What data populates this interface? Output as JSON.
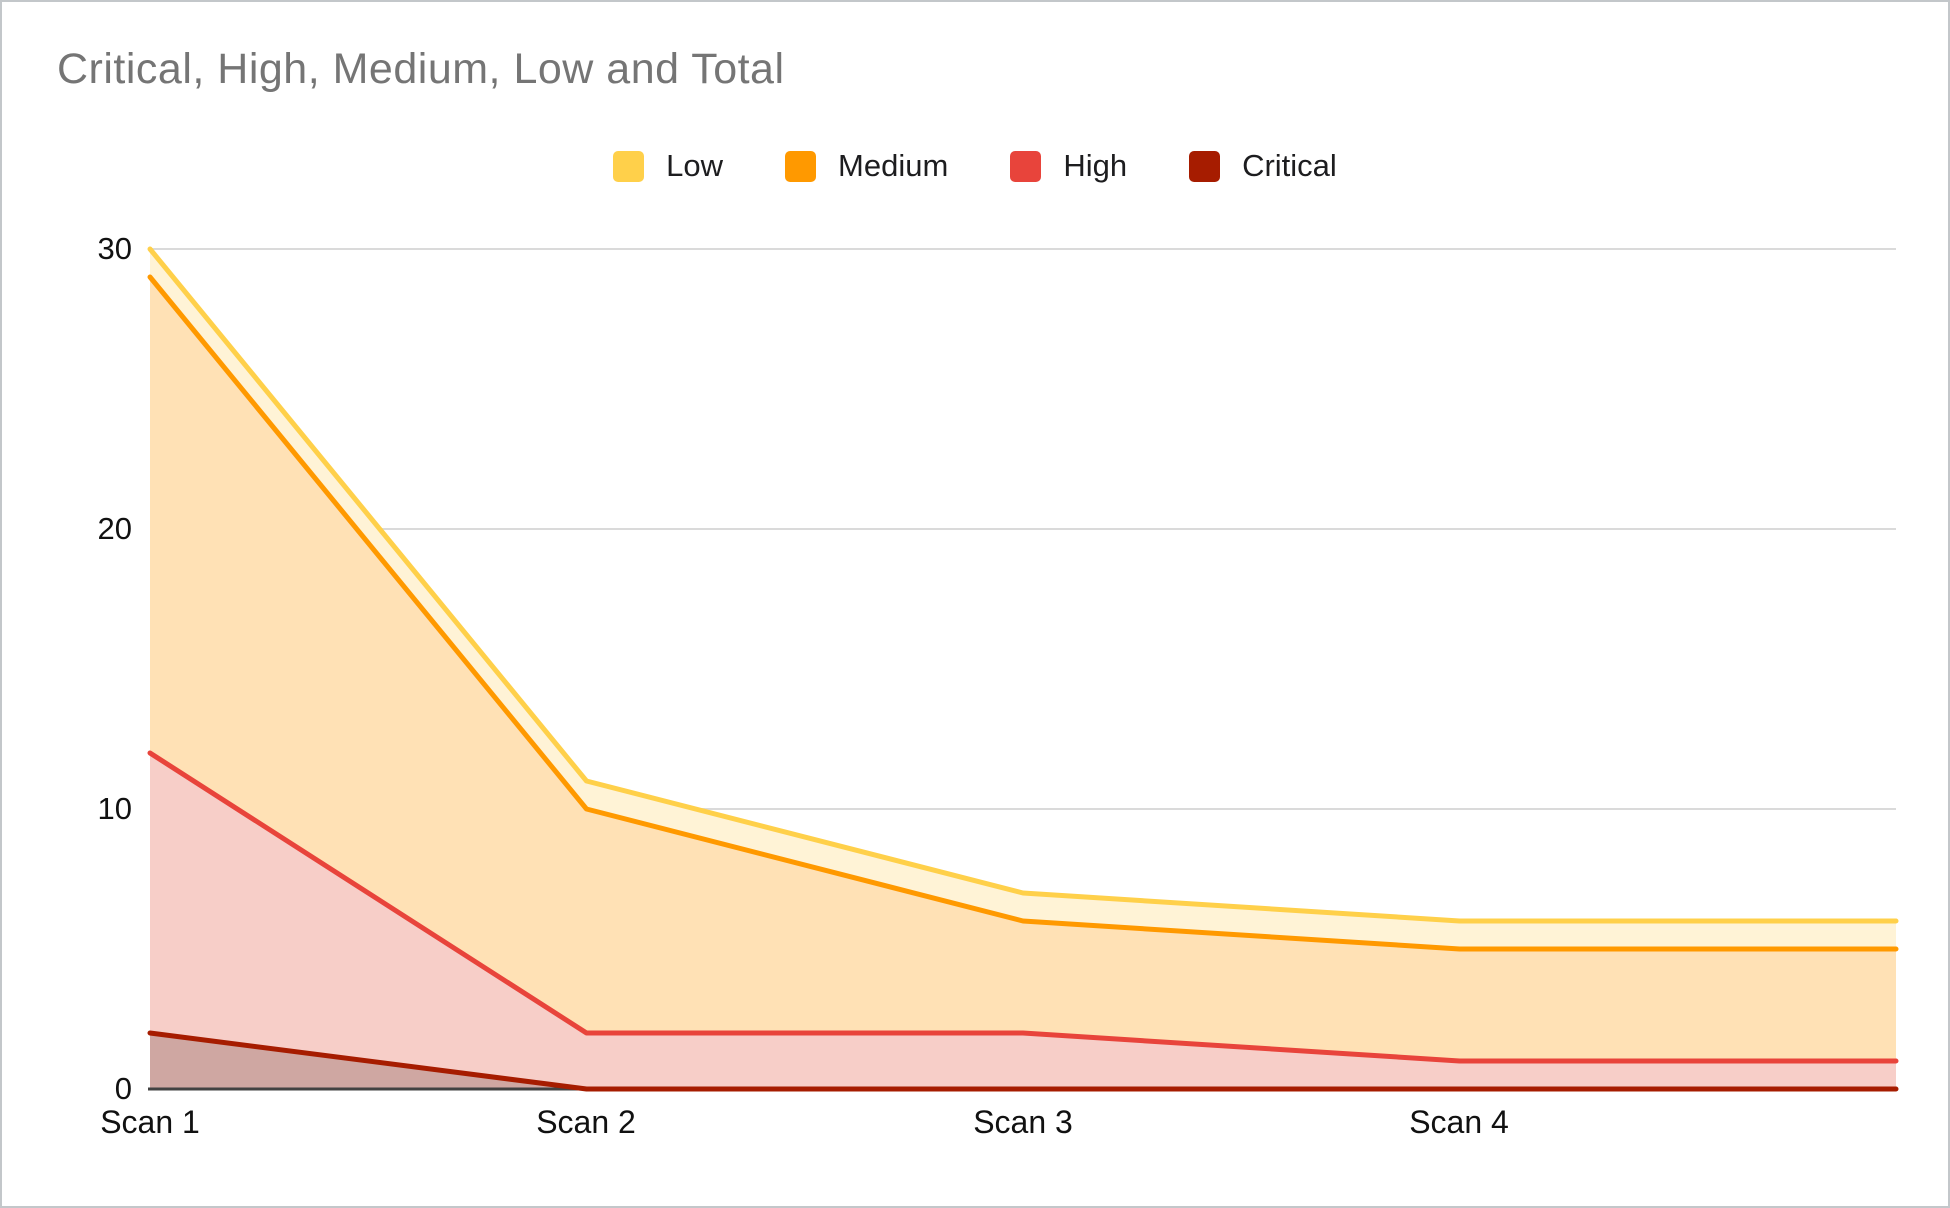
{
  "window": {
    "title": "Critical, High, Medium, Low and Total"
  },
  "chart_data": {
    "type": "area",
    "stacked": true,
    "title": "Critical, High, Medium, Low and Total",
    "xlabel": "",
    "ylabel": "",
    "ylim": [
      0,
      30
    ],
    "y_ticks": [
      "30",
      "20",
      "10",
      "0"
    ],
    "grid": true,
    "legend_position": "top-center",
    "categories": [
      "Scan 1",
      "Scan 2",
      "Scan 3",
      "Scan 4",
      ""
    ],
    "series": [
      {
        "name": "Critical",
        "color": "#A61C00",
        "fill": "#CFA7A2",
        "values": [
          2,
          0,
          0,
          0,
          0
        ],
        "cumulative": [
          2,
          0,
          0,
          0,
          0
        ]
      },
      {
        "name": "High",
        "color": "#E8443B",
        "fill": "#F7CEC8",
        "values": [
          10,
          2,
          2,
          1,
          1
        ],
        "cumulative": [
          12,
          2,
          2,
          1,
          1
        ]
      },
      {
        "name": "Medium",
        "color": "#FF9900",
        "fill": "#FFE1B5",
        "values": [
          17,
          8,
          4,
          4,
          4
        ],
        "cumulative": [
          29,
          10,
          6,
          5,
          5
        ]
      },
      {
        "name": "Low",
        "color": "#FFD04A",
        "fill": "#FFF3D6",
        "values": [
          1,
          1,
          1,
          1,
          1
        ],
        "cumulative": [
          30,
          11,
          7,
          6,
          6
        ]
      }
    ],
    "legend": [
      {
        "label": "Low",
        "color": "#FFD04A"
      },
      {
        "label": "Medium",
        "color": "#FF9900"
      },
      {
        "label": "High",
        "color": "#E8443B"
      },
      {
        "label": "Critical",
        "color": "#A61C00"
      }
    ],
    "axis_colors": {
      "gridline": "#dadada",
      "baseline": "#424242",
      "tick_text": "#111111"
    },
    "title_color": "#757575"
  }
}
